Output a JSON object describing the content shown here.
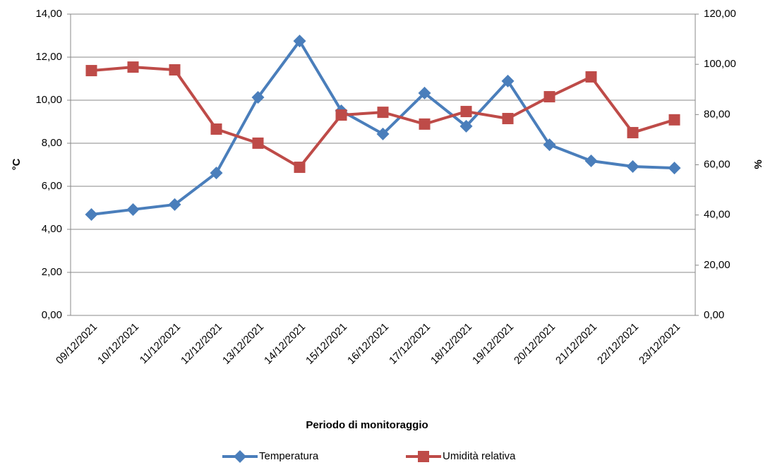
{
  "chart_data": {
    "type": "line",
    "x_label": "Periodo di monitoraggio",
    "y_label": "°C",
    "y2_label": "%",
    "categories": [
      "09/12/2021",
      "10/12/2021",
      "11/12/2021",
      "12/12/2021",
      "13/12/2021",
      "14/12/2021",
      "15/12/2021",
      "16/12/2021",
      "17/12/2021",
      "18/12/2021",
      "19/12/2021",
      "20/12/2021",
      "21/12/2021",
      "22/12/2021",
      "23/12/2021"
    ],
    "series": [
      {
        "name": "Temperatura",
        "color": "#4a7ebb",
        "marker": "diamond",
        "values": [
          4.69,
          4.92,
          5.15,
          6.62,
          10.13,
          12.75,
          9.51,
          8.43,
          10.33,
          8.79,
          10.89,
          7.93,
          7.18,
          6.92,
          6.85
        ]
      },
      {
        "name": "Umidità relativa",
        "color": "#be4b48",
        "marker": "square",
        "axis": "y2",
        "values": [
          97.5,
          98.9,
          97.8,
          74.2,
          68.6,
          59.0,
          79.8,
          80.9,
          76.2,
          81.2,
          78.4,
          87.1,
          95.0,
          72.8,
          77.9
        ]
      }
    ],
    "ylim": [
      0,
      14
    ],
    "yticks": [
      {
        "value": 0,
        "label": "0,00"
      },
      {
        "value": 2,
        "label": "2,00"
      },
      {
        "value": 4,
        "label": "4,00"
      },
      {
        "value": 6,
        "label": "6,00"
      },
      {
        "value": 8,
        "label": "8,00"
      },
      {
        "value": 10,
        "label": "10,00"
      },
      {
        "value": 12,
        "label": "12,00"
      },
      {
        "value": 14,
        "label": "14,00"
      }
    ],
    "y2lim": [
      0,
      120
    ],
    "y2ticks": [
      {
        "value": 0,
        "label": "0,00"
      },
      {
        "value": 20,
        "label": "20,00"
      },
      {
        "value": 40,
        "label": "40,00"
      },
      {
        "value": 60,
        "label": "60,00"
      },
      {
        "value": 80,
        "label": "80,00"
      },
      {
        "value": 100,
        "label": "100,00"
      },
      {
        "value": 120,
        "label": "120,00"
      }
    ],
    "grid": true,
    "legend": "bottom"
  }
}
